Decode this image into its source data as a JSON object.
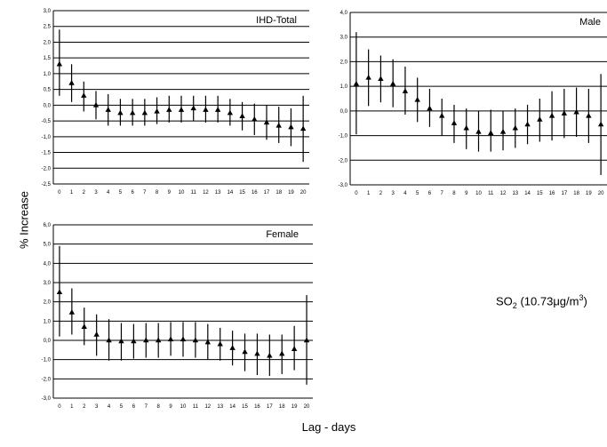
{
  "figure": {
    "y_axis_label": "% Increase",
    "x_axis_label": "Lag - days",
    "pollutant": {
      "symbol": "SO",
      "subscript": "2",
      "value_text": "(10.73",
      "unit": "μg/m",
      "unit_superscript": "3",
      "close": ")"
    }
  },
  "chart_data": [
    {
      "type": "scatter",
      "panel": "IHD-Total",
      "title": "IHD-Total",
      "x": [
        0,
        1,
        2,
        3,
        4,
        5,
        6,
        7,
        8,
        9,
        10,
        11,
        12,
        13,
        14,
        15,
        16,
        17,
        18,
        19,
        20
      ],
      "y": [
        1.3,
        0.7,
        0.3,
        0.0,
        -0.15,
        -0.25,
        -0.25,
        -0.25,
        -0.2,
        -0.15,
        -0.15,
        -0.1,
        -0.15,
        -0.15,
        -0.25,
        -0.35,
        -0.45,
        -0.55,
        -0.65,
        -0.7,
        -0.75
      ],
      "ci_lower": [
        0.3,
        0.1,
        -0.2,
        -0.45,
        -0.65,
        -0.65,
        -0.65,
        -0.65,
        -0.6,
        -0.55,
        -0.55,
        -0.5,
        -0.55,
        -0.55,
        -0.65,
        -0.8,
        -0.95,
        -1.1,
        -1.2,
        -1.3,
        -1.8
      ],
      "ci_upper": [
        2.4,
        1.3,
        0.75,
        0.45,
        0.35,
        0.2,
        0.2,
        0.2,
        0.25,
        0.3,
        0.3,
        0.3,
        0.3,
        0.3,
        0.2,
        0.1,
        0.05,
        0.0,
        -0.05,
        -0.1,
        0.3
      ],
      "ylim": [
        -2.5,
        3.0
      ],
      "yticks": [
        3.0,
        2.5,
        2.0,
        1.5,
        1.0,
        0.5,
        0.0,
        -0.5,
        -1.0,
        -1.5,
        -2.0,
        -2.5
      ],
      "ytick_labels": [
        "3,0",
        "2,5",
        "2,0",
        "1,5",
        "1,0",
        "0,5",
        "0,0",
        "-0,5",
        "-1,0",
        "-1,5",
        "-2,0",
        "-2,5"
      ],
      "xtick_labels": [
        "0",
        "1",
        "2",
        "3",
        "4",
        "5",
        "6",
        "7",
        "8",
        "9",
        "10",
        "11",
        "12",
        "13",
        "14",
        "15",
        "16",
        "17",
        "18",
        "19",
        "20"
      ],
      "grid": "horizontal"
    },
    {
      "type": "scatter",
      "panel": "Male",
      "title": "Male",
      "x": [
        0,
        1,
        2,
        3,
        4,
        5,
        6,
        7,
        8,
        9,
        10,
        11,
        12,
        13,
        14,
        15,
        16,
        17,
        18,
        19,
        20
      ],
      "y": [
        1.1,
        1.35,
        1.3,
        1.1,
        0.8,
        0.45,
        0.1,
        -0.2,
        -0.5,
        -0.7,
        -0.85,
        -0.9,
        -0.85,
        -0.7,
        -0.55,
        -0.35,
        -0.2,
        -0.1,
        -0.05,
        -0.2,
        -0.55
      ],
      "ci_lower": [
        -0.95,
        0.2,
        0.35,
        0.15,
        -0.15,
        -0.45,
        -0.65,
        -1.0,
        -1.3,
        -1.55,
        -1.65,
        -1.65,
        -1.6,
        -1.5,
        -1.35,
        -1.25,
        -1.2,
        -1.1,
        -1.05,
        -1.3,
        -2.6
      ],
      "ci_upper": [
        3.2,
        2.5,
        2.25,
        2.1,
        1.8,
        1.35,
        0.9,
        0.5,
        0.25,
        0.1,
        0.0,
        0.05,
        0.0,
        0.1,
        0.25,
        0.5,
        0.8,
        0.9,
        0.95,
        0.9,
        1.5
      ],
      "ylim": [
        -3.0,
        4.0
      ],
      "yticks": [
        4.0,
        3.0,
        2.0,
        1.0,
        0.0,
        -1.0,
        -2.0,
        -3.0
      ],
      "ytick_labels": [
        "4,0",
        "3,0",
        "2,0",
        "1,0",
        "0,0",
        "-1,0",
        "-2,0",
        "-3,0"
      ],
      "xtick_labels": [
        "0",
        "1",
        "2",
        "3",
        "4",
        "5",
        "6",
        "7",
        "8",
        "9",
        "10",
        "11",
        "12",
        "13",
        "14",
        "15",
        "16",
        "17",
        "18",
        "19",
        "20"
      ],
      "grid": "horizontal"
    },
    {
      "type": "scatter",
      "panel": "Female",
      "title": "Female",
      "x": [
        0,
        1,
        2,
        3,
        4,
        5,
        6,
        7,
        8,
        9,
        10,
        11,
        12,
        13,
        14,
        15,
        16,
        17,
        18,
        19,
        20
      ],
      "y": [
        2.5,
        1.45,
        0.7,
        0.3,
        0.0,
        -0.05,
        -0.05,
        0.0,
        0.0,
        0.05,
        0.05,
        0.0,
        -0.1,
        -0.2,
        -0.4,
        -0.6,
        -0.7,
        -0.8,
        -0.7,
        -0.45,
        0.0
      ],
      "ci_lower": [
        0.2,
        0.3,
        -0.25,
        -0.8,
        -1.05,
        -1.05,
        -0.95,
        -0.9,
        -0.9,
        -0.8,
        -0.85,
        -0.9,
        -1.0,
        -1.05,
        -1.3,
        -1.6,
        -1.8,
        -1.85,
        -1.75,
        -1.55,
        -2.3
      ],
      "ci_upper": [
        4.9,
        2.7,
        1.7,
        1.35,
        1.1,
        0.9,
        0.85,
        0.9,
        0.9,
        0.95,
        0.95,
        0.95,
        0.85,
        0.65,
        0.5,
        0.35,
        0.35,
        0.3,
        0.3,
        0.75,
        2.35
      ],
      "ylim": [
        -3.0,
        6.0
      ],
      "yticks": [
        6.0,
        5.0,
        4.0,
        3.0,
        2.0,
        1.0,
        0.0,
        -1.0,
        -2.0,
        -3.0
      ],
      "ytick_labels": [
        "6,0",
        "5,0",
        "4,0",
        "3,0",
        "2,0",
        "1,0",
        "0,0",
        "-1,0",
        "-2,0",
        "-3,0"
      ],
      "xtick_labels": [
        "0",
        "1",
        "2",
        "3",
        "4",
        "5",
        "6",
        "7",
        "8",
        "9",
        "10",
        "11",
        "12",
        "13",
        "14",
        "15",
        "16",
        "17",
        "18",
        "19",
        "20"
      ],
      "grid": "horizontal"
    }
  ]
}
